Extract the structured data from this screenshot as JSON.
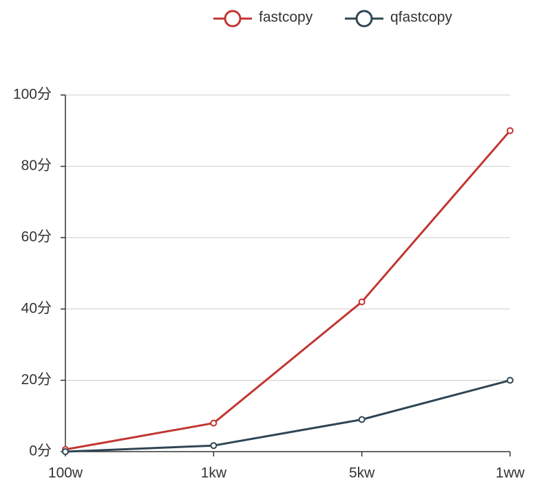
{
  "chart_data": {
    "type": "line",
    "categories": [
      "100w",
      "1kw",
      "5kw",
      "1ww"
    ],
    "series": [
      {
        "name": "fastcopy",
        "color": "#c23531",
        "values": [
          0.6,
          8,
          42,
          90
        ]
      },
      {
        "name": "qfastcopy",
        "color": "#2f4554",
        "values": [
          0,
          1.7,
          9,
          20
        ]
      }
    ],
    "ylim": [
      0,
      100
    ],
    "yticks": [
      {
        "value": 0,
        "label": "0分"
      },
      {
        "value": 20,
        "label": "20分"
      },
      {
        "value": 40,
        "label": "40分"
      },
      {
        "value": 60,
        "label": "60分"
      },
      {
        "value": 80,
        "label": "80分"
      },
      {
        "value": 100,
        "label": "100分"
      }
    ],
    "grid": true
  }
}
